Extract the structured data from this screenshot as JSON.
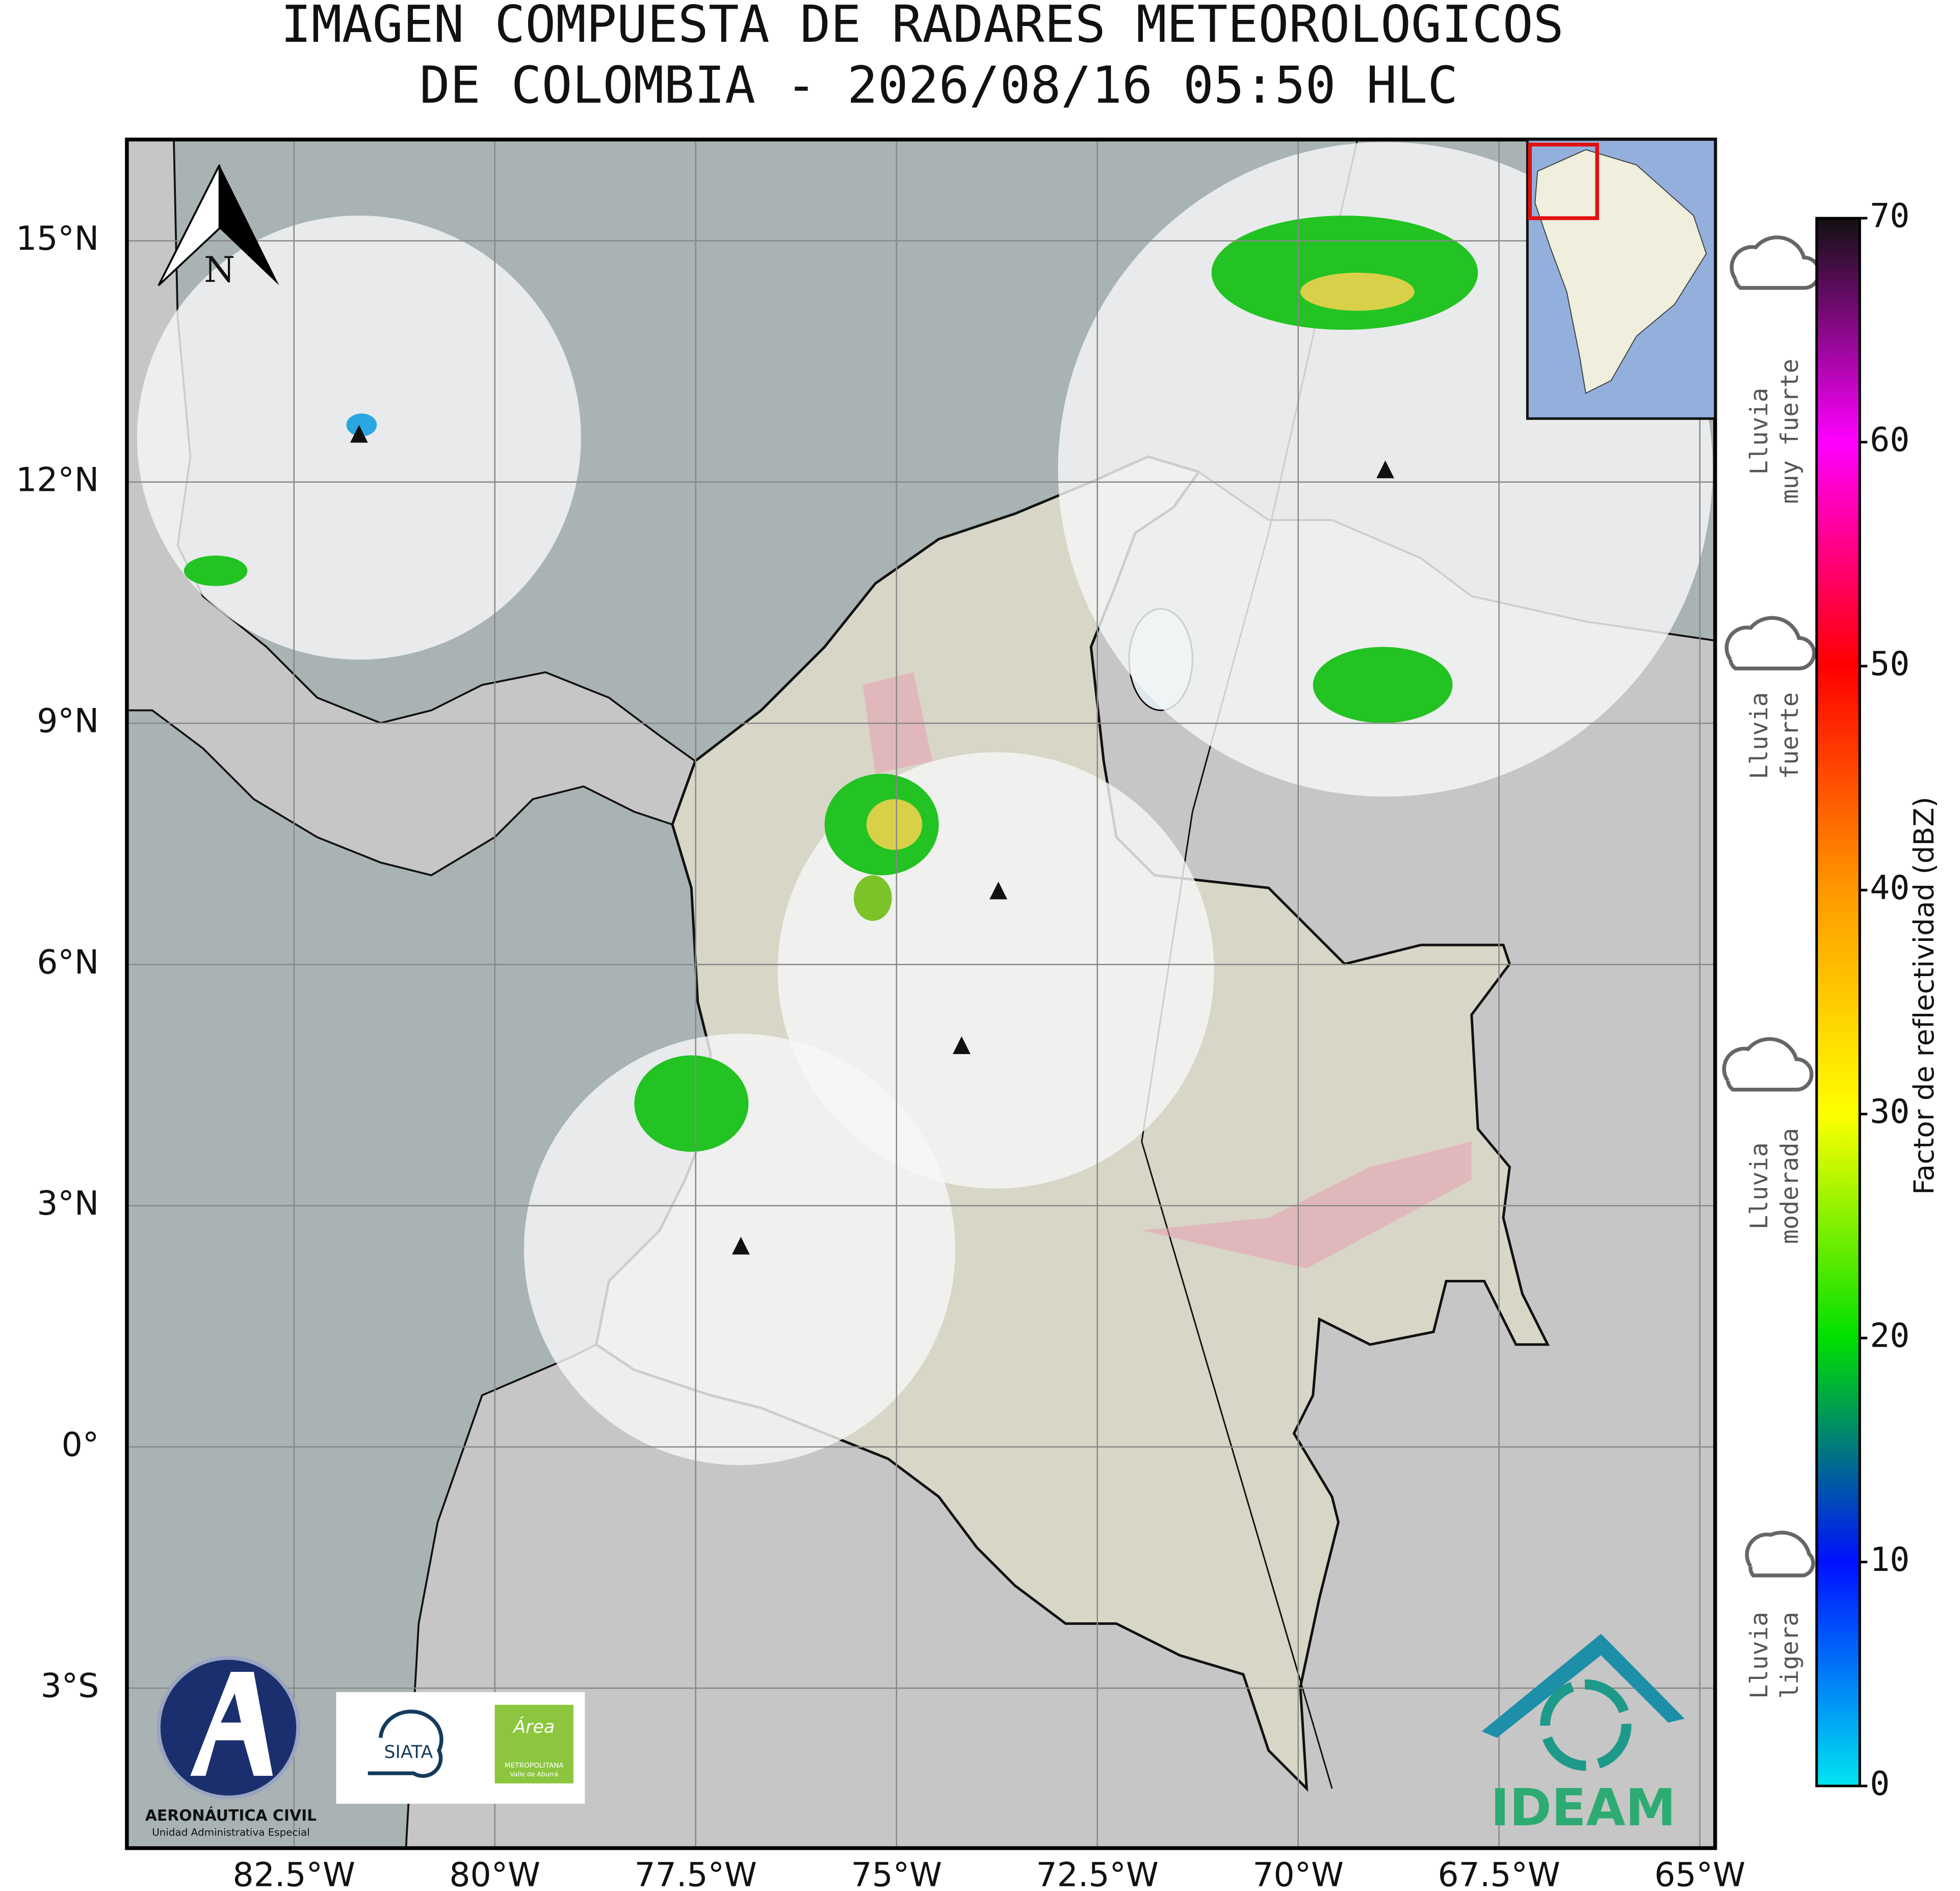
{
  "header": {
    "title": [
      "IMAGEN COMPUESTA DE RADARES METEOROLOGICOS",
      "DE COLOMBIA - 2026/08/16 05:50 HLC"
    ]
  },
  "map": {
    "lon_range": [
      -84.58,
      -64.81
    ],
    "lat_range": [
      -4.99,
      16.26
    ],
    "lon_ticks": [
      {
        "value": -82.5,
        "label": "82.5°W"
      },
      {
        "value": -80,
        "label": "80°W"
      },
      {
        "value": -77.5,
        "label": "77.5°W"
      },
      {
        "value": -75,
        "label": "75°W"
      },
      {
        "value": -72.5,
        "label": "72.5°W"
      },
      {
        "value": -70,
        "label": "70°W"
      },
      {
        "value": -67.5,
        "label": "67.5°W"
      },
      {
        "value": -65,
        "label": "65°W"
      }
    ],
    "lat_ticks": [
      {
        "value": 15,
        "label": "15°N"
      },
      {
        "value": 12,
        "label": "12°N"
      },
      {
        "value": 9,
        "label": "9°N"
      },
      {
        "value": 6,
        "label": "6°N"
      },
      {
        "value": 3,
        "label": "3°N"
      },
      {
        "value": 0,
        "label": "0°"
      },
      {
        "value": -3,
        "label": "3°S"
      }
    ],
    "north_label": "N"
  },
  "colorbar": {
    "label": "Factor de reflectividad (dBZ)",
    "range": [
      0,
      70
    ],
    "ticks": [
      0,
      10,
      20,
      30,
      40,
      50,
      60,
      70
    ],
    "colors": [
      "#00e5f0",
      "#0010ff",
      "#00e000",
      "#ffff00",
      "#ff9900",
      "#ff0000",
      "#ff00ff",
      "#111111"
    ]
  },
  "rain_categories": [
    [
      "Lluvia",
      "muy fuerte"
    ],
    [
      "Lluvia",
      "fuerte"
    ],
    [
      "Lluvia",
      "moderada"
    ],
    [
      "Lluvia",
      "ligera"
    ]
  ],
  "logos": {
    "aerocivil": [
      "AERONÁUTICA CIVIL",
      "Unidad Administrativa Especial"
    ],
    "siata": "SIATA",
    "area": [
      "Área",
      "METROPOLITANA",
      "Valle de Aburrá"
    ],
    "ideam": "IDEAM"
  }
}
